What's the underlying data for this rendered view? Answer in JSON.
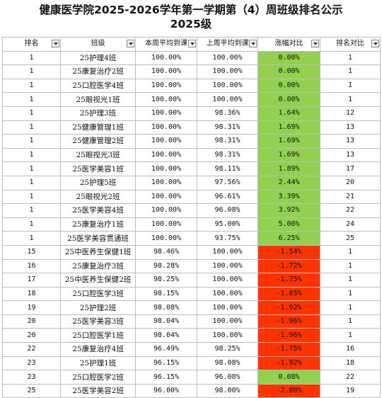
{
  "title": {
    "line1": "健康医学院2025-2026学年第一学期第（4）周班级排名公示",
    "line2": "2025级"
  },
  "colors": {
    "up": "#92d050",
    "down": "#ff3300"
  },
  "headers": [
    "排名",
    "班级",
    "本周平均到课",
    "上周平均到课",
    "涨幅对比",
    "排名对比"
  ],
  "rows": [
    {
      "rank": "1",
      "cls": "25护理4班",
      "this": "100.00%",
      "last": "100.00%",
      "change": "0.00%",
      "dir": "up",
      "prev": "1"
    },
    {
      "rank": "1",
      "cls": "25康复治疗2班",
      "this": "100.00%",
      "last": "100.00%",
      "change": "0.00%",
      "dir": "up",
      "prev": "1"
    },
    {
      "rank": "1",
      "cls": "25口腔医学4班",
      "this": "100.00%",
      "last": "100.00%",
      "change": "0.00%",
      "dir": "up",
      "prev": "1"
    },
    {
      "rank": "1",
      "cls": "25眼视光1班",
      "this": "100.00%",
      "last": "100.00%",
      "change": "0.00%",
      "dir": "up",
      "prev": "1"
    },
    {
      "rank": "1",
      "cls": "25护理3班",
      "this": "100.00%",
      "last": "98.36%",
      "change": "1.64%",
      "dir": "up",
      "prev": "12"
    },
    {
      "rank": "1",
      "cls": "25健康管理1班",
      "this": "100.00%",
      "last": "98.31%",
      "change": "1.69%",
      "dir": "up",
      "prev": "13"
    },
    {
      "rank": "1",
      "cls": "25健康管理2班",
      "this": "100.00%",
      "last": "98.31%",
      "change": "1.69%",
      "dir": "up",
      "prev": "13"
    },
    {
      "rank": "1",
      "cls": "25眼视光3班",
      "this": "100.00%",
      "last": "98.31%",
      "change": "1.69%",
      "dir": "up",
      "prev": "13"
    },
    {
      "rank": "1",
      "cls": "25医学美容1班",
      "this": "100.00%",
      "last": "98.11%",
      "change": "1.89%",
      "dir": "up",
      "prev": "17"
    },
    {
      "rank": "1",
      "cls": "25护理5班",
      "this": "100.00%",
      "last": "97.56%",
      "change": "2.44%",
      "dir": "up",
      "prev": "20"
    },
    {
      "rank": "1",
      "cls": "25眼视光2班",
      "this": "100.00%",
      "last": "96.61%",
      "change": "3.39%",
      "dir": "up",
      "prev": "21"
    },
    {
      "rank": "1",
      "cls": "25医学美容4班",
      "this": "100.00%",
      "last": "96.08%",
      "change": "3.92%",
      "dir": "up",
      "prev": "22"
    },
    {
      "rank": "1",
      "cls": "25康复治疗1班",
      "this": "100.00%",
      "last": "95.00%",
      "change": "5.00%",
      "dir": "up",
      "prev": "24"
    },
    {
      "rank": "1",
      "cls": "25医学美容贯通班",
      "this": "100.00%",
      "last": "93.75%",
      "change": "6.25%",
      "dir": "up",
      "prev": "25"
    },
    {
      "rank": "15",
      "cls": "25中医养生保健1班",
      "this": "98.46%",
      "last": "100.00%",
      "change": "-1.54%",
      "dir": "down",
      "prev": "1"
    },
    {
      "rank": "16",
      "cls": "25康复治疗3班",
      "this": "98.28%",
      "last": "100.00%",
      "change": "-1.72%",
      "dir": "down",
      "prev": "1"
    },
    {
      "rank": "17",
      "cls": "25中医养生保健2班",
      "this": "98.25%",
      "last": "100.00%",
      "change": "-1.75%",
      "dir": "down",
      "prev": "1"
    },
    {
      "rank": "18",
      "cls": "25口腔医学3班",
      "this": "98.15%",
      "last": "100.00%",
      "change": "-1.85%",
      "dir": "down",
      "prev": "1"
    },
    {
      "rank": "19",
      "cls": "25护理2班",
      "this": "98.08%",
      "last": "100.00%",
      "change": "-1.92%",
      "dir": "down",
      "prev": "1"
    },
    {
      "rank": "20",
      "cls": "25医学美容3班",
      "this": "98.04%",
      "last": "100.00%",
      "change": "-1.96%",
      "dir": "down",
      "prev": "1"
    },
    {
      "rank": "20",
      "cls": "25口腔医学1班",
      "this": "98.04%",
      "last": "100.00%",
      "change": "-1.96%",
      "dir": "down",
      "prev": "1"
    },
    {
      "rank": "22",
      "cls": "25康复治疗4班",
      "this": "96.49%",
      "last": "98.25%",
      "change": "-1.75%",
      "dir": "down",
      "prev": "16"
    },
    {
      "rank": "23",
      "cls": "25护理1班",
      "this": "96.15%",
      "last": "98.08%",
      "change": "-1.92%",
      "dir": "down",
      "prev": "18"
    },
    {
      "rank": "23",
      "cls": "25口腔医学2班",
      "this": "96.15%",
      "last": "96.08%",
      "change": "0.08%",
      "dir": "up",
      "prev": "22"
    },
    {
      "rank": "25",
      "cls": "25医学美容2班",
      "this": "96.00%",
      "last": "98.00%",
      "change": "-2.00%",
      "dir": "down",
      "prev": "19"
    }
  ]
}
